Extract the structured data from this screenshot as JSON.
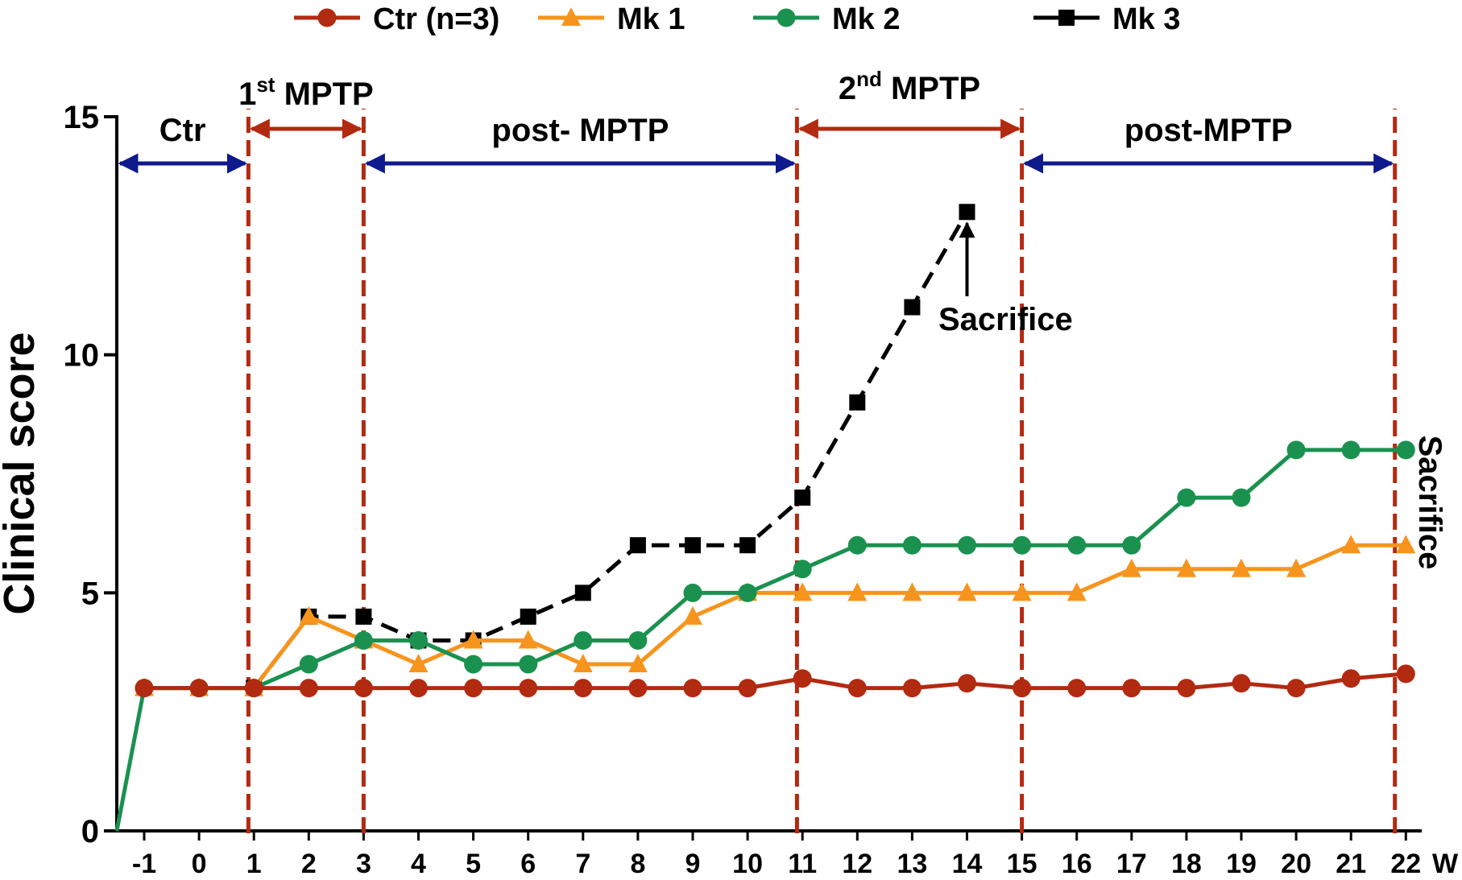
{
  "chart_data": {
    "type": "line",
    "xlabel": "W",
    "ylabel": "Clinical score",
    "ylim": [
      0,
      15
    ],
    "yticks": [
      0,
      5,
      10,
      15
    ],
    "x_ticks": [
      "-1",
      "0",
      "1",
      "2",
      "3",
      "4",
      "5",
      "6",
      "7",
      "8",
      "9",
      "10",
      "11",
      "12",
      "13",
      "14",
      "15",
      "16",
      "17",
      "18",
      "19",
      "20",
      "21",
      "22"
    ],
    "x": [
      -1,
      0,
      1,
      2,
      3,
      4,
      5,
      6,
      7,
      8,
      9,
      10,
      11,
      12,
      13,
      14,
      15,
      16,
      17,
      18,
      19,
      20,
      21,
      22
    ],
    "series": [
      {
        "name": "Ctr (n=3)",
        "color": "#b22a10",
        "marker": "circle",
        "x": [
          -1,
          0,
          1,
          2,
          3,
          4,
          5,
          6,
          7,
          8,
          9,
          10,
          11,
          12,
          13,
          14,
          15,
          16,
          17,
          18,
          19,
          20,
          21,
          22
        ],
        "values": [
          3,
          3,
          3,
          3,
          3,
          3,
          3,
          3,
          3,
          3,
          3,
          3,
          3.2,
          3,
          3,
          3.1,
          3,
          3,
          3,
          3,
          3.1,
          3,
          3.2,
          3.3
        ]
      },
      {
        "name": "Mk 1",
        "color": "#f7941d",
        "marker": "triangle",
        "x": [
          -1,
          0,
          1,
          2,
          3,
          4,
          5,
          6,
          7,
          8,
          9,
          10,
          11,
          12,
          13,
          14,
          15,
          16,
          17,
          18,
          19,
          20,
          21,
          22
        ],
        "values": [
          3,
          3,
          3,
          4.5,
          4,
          3.5,
          4,
          4,
          3.5,
          3.5,
          4.5,
          5,
          5,
          5,
          5,
          5,
          5,
          5,
          5.5,
          5.5,
          5.5,
          5.5,
          6,
          6
        ]
      },
      {
        "name": "Mk 2",
        "color": "#1b9150",
        "marker": "circle",
        "x": [
          -1.5,
          -1,
          0,
          1,
          2,
          3,
          4,
          5,
          6,
          7,
          8,
          9,
          10,
          11,
          12,
          13,
          14,
          15,
          16,
          17,
          18,
          19,
          20,
          21,
          22
        ],
        "values": [
          0,
          3,
          3,
          3,
          3.5,
          4,
          4,
          3.5,
          3.5,
          4,
          4,
          5,
          5,
          5.5,
          6,
          6,
          6,
          6,
          6,
          6,
          7,
          7,
          8,
          8,
          8
        ]
      },
      {
        "name": "Mk 3",
        "color": "#000000",
        "marker": "square",
        "dashed": true,
        "x": [
          1,
          2,
          3,
          4,
          5,
          6,
          7,
          8,
          9,
          10,
          11,
          12,
          13,
          14
        ],
        "values": [
          3,
          4.5,
          4.5,
          4,
          4,
          4.5,
          5,
          6,
          6,
          6,
          7,
          9,
          11,
          13
        ]
      }
    ],
    "phase_boundaries": [
      0.9,
      3,
      10.9,
      15,
      21.8
    ],
    "phases": [
      {
        "label": "Ctr",
        "from": -1.5,
        "to": 0.9,
        "color": "#0f1a8c"
      },
      {
        "label_main": "1",
        "label_sup": "st",
        "label_rest": " MPTP",
        "from": 0.9,
        "to": 3,
        "color": "#b22a10"
      },
      {
        "label": "post- MPTP",
        "from": 3,
        "to": 10.9,
        "color": "#0f1a8c"
      },
      {
        "label_main": "2",
        "label_sup": "nd",
        "label_rest": " MPTP",
        "from": 10.9,
        "to": 15,
        "color": "#b22a10"
      },
      {
        "label": "post-MPTP",
        "from": 15,
        "to": 21.8,
        "color": "#0f1a8c"
      }
    ],
    "annotations": [
      {
        "text": "Sacrifice",
        "points_to_x": 14,
        "points_to_y": 13
      },
      {
        "text": "Sacrifice",
        "at_x": 22,
        "orientation": "vertical"
      }
    ]
  }
}
